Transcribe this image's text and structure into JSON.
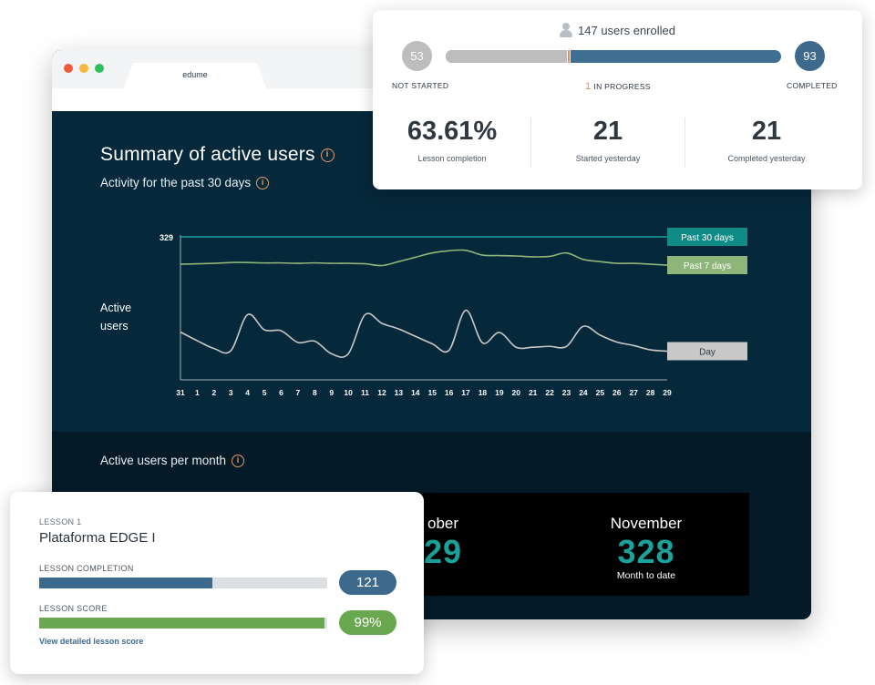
{
  "browser": {
    "tab_title": "edume"
  },
  "summary": {
    "title": "Summary of active users",
    "subtitle": "Activity for the past 30 days",
    "info_icon": "info-icon",
    "y_axis_label_line1": "Active",
    "y_axis_label_line2": "users"
  },
  "chart_data": {
    "type": "line",
    "title": "Activity for the past 30 days",
    "ylabel": "Active users",
    "x": [
      "31",
      "1",
      "2",
      "3",
      "4",
      "5",
      "6",
      "7",
      "8",
      "9",
      "10",
      "11",
      "12",
      "13",
      "14",
      "15",
      "16",
      "17",
      "18",
      "19",
      "20",
      "21",
      "22",
      "23",
      "24",
      "25",
      "26",
      "27",
      "28",
      "29"
    ],
    "y_max_label": "329",
    "ylim": [
      0,
      329
    ],
    "series": [
      {
        "name": "Past 30 days",
        "color": "#1aa39c",
        "values": [
          329,
          329,
          329,
          329,
          329,
          329,
          329,
          329,
          329,
          329,
          329,
          329,
          329,
          329,
          329,
          329,
          329,
          329,
          329,
          329,
          329,
          329,
          329,
          329,
          329,
          329,
          329,
          329,
          329,
          329
        ]
      },
      {
        "name": "Past 7 days",
        "color": "#8fb67a",
        "values": [
          266,
          267,
          268,
          270,
          270,
          269,
          269,
          268,
          269,
          268,
          268,
          267,
          263,
          272,
          282,
          292,
          297,
          298,
          287,
          286,
          285,
          283,
          284,
          292,
          277,
          272,
          268,
          268,
          266,
          264
        ]
      },
      {
        "name": "Day",
        "color": "#c8c8c8",
        "values": [
          110,
          90,
          72,
          67,
          150,
          115,
          113,
          86,
          89,
          60,
          60,
          150,
          130,
          117,
          100,
          83,
          68,
          160,
          85,
          109,
          75,
          75,
          77,
          77,
          123,
          103,
          87,
          79,
          69,
          66
        ]
      }
    ]
  },
  "monthly": {
    "title": "Active users per month",
    "cards": [
      {
        "month": "ober",
        "value": "29",
        "footer": ""
      },
      {
        "month": "November",
        "value": "328",
        "footer": "Month to date"
      }
    ]
  },
  "enrollment": {
    "header": "147 users enrolled",
    "user_icon": "user-icon",
    "not_started": {
      "count": "53",
      "label": "NOT STARTED"
    },
    "in_progress": {
      "count": "1",
      "label": "IN PROGRESS"
    },
    "completed": {
      "count": "93",
      "label": "COMPLETED"
    },
    "progress": {
      "not_started_fraction": 0.3605,
      "in_progress_fraction": 0.0068,
      "completed_fraction": 0.6327
    },
    "stats": [
      {
        "value": "63.61%",
        "label": "Lesson completion"
      },
      {
        "value": "21",
        "label": "Started yesterday"
      },
      {
        "value": "21",
        "label": "Completed yesterday"
      }
    ],
    "colors": {
      "not_started": "#bdbdbd",
      "in_progress": "#e88a55",
      "completed": "#3f6f93"
    }
  },
  "lesson": {
    "number": "LESSON 1",
    "name": "Plataforma EDGE I",
    "completion_label": "LESSON COMPLETION",
    "completion_value": "121",
    "completion_fraction": 0.6,
    "score_label": "LESSON SCORE",
    "score_value": "99%",
    "score_fraction": 0.99,
    "link_text": "View detailed lesson score",
    "colors": {
      "completion": "#3d6a8c",
      "score": "#6aa84f"
    }
  }
}
